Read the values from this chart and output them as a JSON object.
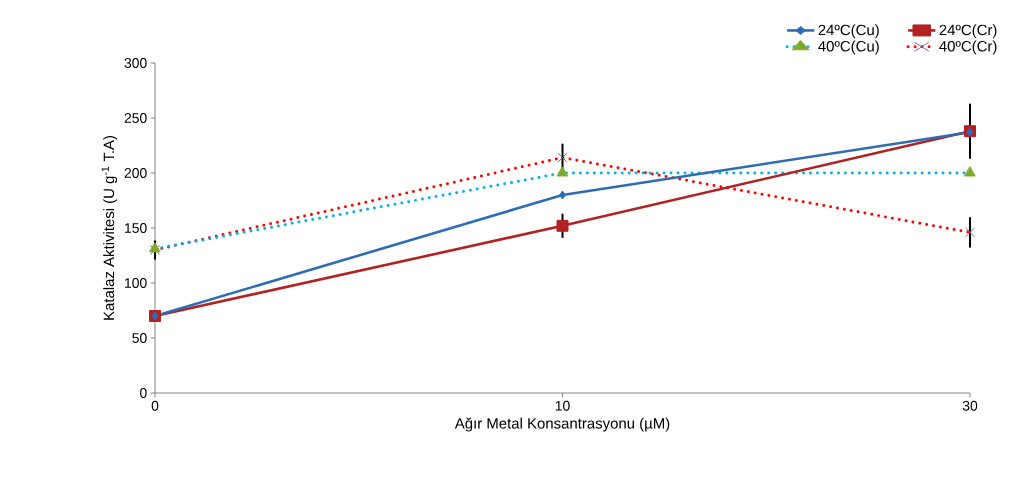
{
  "chart_data": {
    "type": "line",
    "xlabel": "Ağır Metal Konsantrasyonu (µM)",
    "ylabel": "Katalaz  Aktivitesi (U g$^{-1}$ T.A)",
    "categories": [
      "0",
      "10",
      "30"
    ],
    "ylim": [
      0,
      300
    ],
    "yticks": [
      0,
      50,
      100,
      150,
      200,
      250,
      300
    ],
    "grid": false,
    "legend": "top right",
    "series": [
      {
        "name": "24ºC(Cu)",
        "color": "#2e6db4",
        "marker": "diamond",
        "line_style": "solid",
        "values": [
          70,
          180,
          237
        ]
      },
      {
        "name": "24ºC(Cr)",
        "color": "#b22222",
        "marker": "square",
        "line_style": "solid",
        "values": [
          70,
          152,
          238
        ],
        "errors": [
          null,
          11,
          25
        ]
      },
      {
        "name": "40ºC(Cu)",
        "color": "#00b0f0",
        "colors": [
          "#7faa2e",
          "#7faa2e",
          "#7faa2e"
        ],
        "marker": "triangle",
        "line_style": "dotted",
        "values": [
          131,
          200,
          200
        ]
      },
      {
        "name": "40ºC(Cr)",
        "color": "#ff0000",
        "colors": [
          "#8064a2",
          "#8064a2",
          "#8064a2"
        ],
        "marker": "cross",
        "line_style": "dotted",
        "values": [
          130,
          214,
          146
        ],
        "errors": [
          8,
          12,
          13
        ]
      }
    ]
  }
}
